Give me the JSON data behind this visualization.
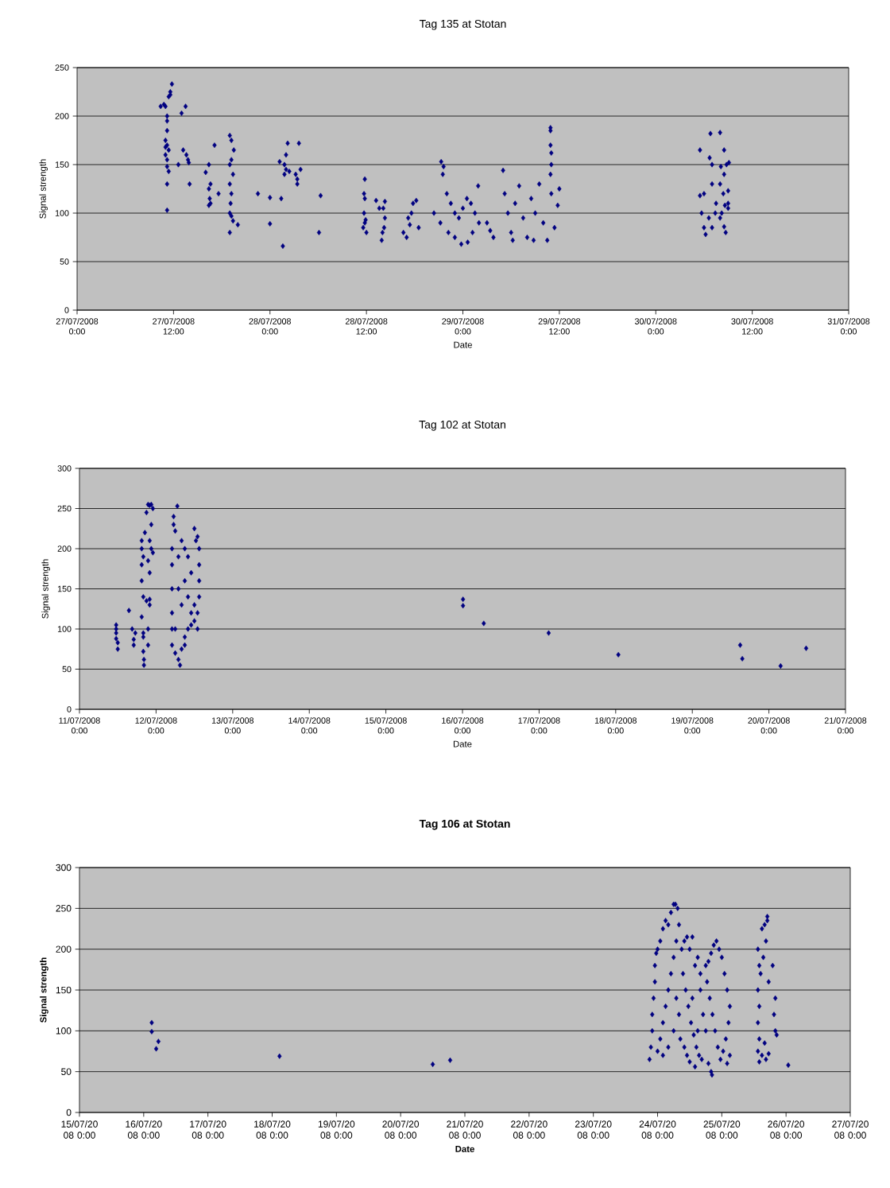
{
  "chart_data": [
    {
      "type": "scatter",
      "title": "Tag 135 at Stotan",
      "xlabel": "Date",
      "ylabel": "Signal strength",
      "color": "#000080",
      "marker": "diamond",
      "grid": "y",
      "xlim": [
        "2008-07-27T00:00",
        "2008-07-31T00:00"
      ],
      "ylim": [
        0,
        250
      ],
      "xticks": [
        {
          "value": "2008-07-27T00:00",
          "label": "27/07/2008 0:00"
        },
        {
          "value": "2008-07-27T12:00",
          "label": "27/07/2008 12:00"
        },
        {
          "value": "2008-07-28T00:00",
          "label": "28/07/2008 0:00"
        },
        {
          "value": "2008-07-28T12:00",
          "label": "28/07/2008 12:00"
        },
        {
          "value": "2008-07-29T00:00",
          "label": "29/07/2008 0:00"
        },
        {
          "value": "2008-07-29T12:00",
          "label": "29/07/2008 12:00"
        },
        {
          "value": "2008-07-30T00:00",
          "label": "30/07/2008 0:00"
        },
        {
          "value": "2008-07-30T12:00",
          "label": "30/07/2008 12:00"
        },
        {
          "value": "2008-07-31T00:00",
          "label": "31/07/2008 0:00"
        }
      ],
      "yticks": [
        0,
        50,
        100,
        150,
        200,
        250
      ],
      "x": [
        "2008-07-27T10:24",
        "2008-07-27T10:48",
        "2008-07-27T11:00",
        "2008-07-27T11:24",
        "2008-07-27T11:36",
        "2008-07-27T11:48",
        "2008-07-27T11:36",
        "2008-07-27T11:12",
        "2008-07-27T11:12",
        "2008-07-27T11:12",
        "2008-07-27T11:00",
        "2008-07-27T11:00",
        "2008-07-27T11:12",
        "2008-07-27T11:12",
        "2008-07-27T11:24",
        "2008-07-27T11:12",
        "2008-07-27T11:12",
        "2008-07-27T11:00",
        "2008-07-27T11:12",
        "2008-07-27T11:24",
        "2008-07-27T13:00",
        "2008-07-27T13:30",
        "2008-07-27T13:12",
        "2008-07-27T13:36",
        "2008-07-27T13:48",
        "2008-07-27T13:54",
        "2008-07-27T14:00",
        "2008-07-27T12:36",
        "2008-07-27T16:00",
        "2008-07-27T16:24",
        "2008-07-27T16:24",
        "2008-07-27T16:36",
        "2008-07-27T16:30",
        "2008-07-27T16:24",
        "2008-07-27T16:36",
        "2008-07-27T17:36",
        "2008-07-27T17:06",
        "2008-07-27T19:00",
        "2008-07-27T19:12",
        "2008-07-27T19:30",
        "2008-07-27T19:12",
        "2008-07-27T19:00",
        "2008-07-27T19:24",
        "2008-07-27T19:00",
        "2008-07-27T19:12",
        "2008-07-27T19:06",
        "2008-07-27T19:00",
        "2008-07-27T19:12",
        "2008-07-27T19:24",
        "2008-07-27T19:00",
        "2008-07-27T20:00",
        "2008-07-27T22:30",
        "2008-07-28T00:00",
        "2008-07-28T00:00",
        "2008-07-28T01:24",
        "2008-07-28T01:36",
        "2008-07-28T01:12",
        "2008-07-28T01:48",
        "2008-07-28T02:00",
        "2008-07-28T02:12",
        "2008-07-28T01:48",
        "2008-07-28T02:00",
        "2008-07-28T02:24",
        "2008-07-28T03:36",
        "2008-07-28T03:12",
        "2008-07-28T03:24",
        "2008-07-28T03:24",
        "2008-07-28T03:48",
        "2008-07-28T06:18",
        "2008-07-28T06:06",
        "2008-07-28T11:48",
        "2008-07-28T11:42",
        "2008-07-28T11:48",
        "2008-07-28T11:42",
        "2008-07-28T11:48",
        "2008-07-28T11:36",
        "2008-07-28T12:00",
        "2008-07-28T11:54",
        "2008-07-28T13:12",
        "2008-07-28T13:36",
        "2008-07-28T14:06",
        "2008-07-28T14:18",
        "2008-07-28T14:18",
        "2008-07-28T14:12",
        "2008-07-28T14:00",
        "2008-07-28T13:54",
        "2008-07-28T16:36",
        "2008-07-28T17:00",
        "2008-07-28T17:12",
        "2008-07-28T17:36",
        "2008-07-28T17:48",
        "2008-07-28T18:12",
        "2008-07-28T18:30",
        "2008-07-28T17:24",
        "2008-07-28T21:18",
        "2008-07-28T21:36",
        "2008-07-28T21:30",
        "2008-07-28T22:00",
        "2008-07-28T22:30",
        "2008-07-28T23:00",
        "2008-07-28T23:30",
        "2008-07-29T00:00",
        "2008-07-29T00:30",
        "2008-07-29T01:00",
        "2008-07-29T01:30",
        "2008-07-29T02:00",
        "2008-07-28T22:12",
        "2008-07-28T23:00",
        "2008-07-28T23:48",
        "2008-07-29T00:36",
        "2008-07-29T01:12",
        "2008-07-28T21:12",
        "2008-07-28T20:24",
        "2008-07-29T01:54",
        "2008-07-29T03:00",
        "2008-07-29T03:24",
        "2008-07-29T03:48",
        "2008-07-29T05:00",
        "2008-07-29T05:12",
        "2008-07-29T05:36",
        "2008-07-29T06:00",
        "2008-07-29T06:30",
        "2008-07-29T07:00",
        "2008-07-29T07:30",
        "2008-07-29T08:00",
        "2008-07-29T08:30",
        "2008-07-29T09:00",
        "2008-07-29T09:30",
        "2008-07-29T10:00",
        "2008-07-29T10:30",
        "2008-07-29T11:00",
        "2008-07-29T11:24",
        "2008-07-29T06:12",
        "2008-07-29T08:48",
        "2008-07-29T10:54",
        "2008-07-29T10:54",
        "2008-07-29T10:54",
        "2008-07-29T11:00",
        "2008-07-29T11:00",
        "2008-07-29T10:54",
        "2008-07-29T12:00",
        "2008-07-29T11:48",
        "2008-07-30T05:30",
        "2008-07-30T06:48",
        "2008-07-30T08:00",
        "2008-07-30T08:30",
        "2008-07-30T06:42",
        "2008-07-30T07:00",
        "2008-07-30T08:06",
        "2008-07-30T08:30",
        "2008-07-30T06:00",
        "2008-07-30T05:30",
        "2008-07-30T07:00",
        "2008-07-30T08:00",
        "2008-07-30T08:24",
        "2008-07-30T07:30",
        "2008-07-30T05:42",
        "2008-07-30T06:00",
        "2008-07-30T06:12",
        "2008-07-30T07:00",
        "2008-07-30T07:24",
        "2008-07-30T08:12",
        "2008-07-30T08:36",
        "2008-07-30T09:00",
        "2008-07-30T08:42",
        "2008-07-30T08:30",
        "2008-07-30T08:00",
        "2008-07-30T06:36",
        "2008-07-30T09:00",
        "2008-07-30T09:06",
        "2008-07-30T08:48",
        "2008-07-30T09:00"
      ],
      "values": [
        210,
        212,
        210,
        220,
        225,
        233,
        222,
        195,
        185,
        170,
        168,
        160,
        155,
        148,
        143,
        130,
        103,
        175,
        200,
        165,
        203,
        210,
        165,
        160,
        155,
        152,
        130,
        150,
        142,
        150,
        125,
        130,
        115,
        108,
        110,
        120,
        170,
        180,
        175,
        165,
        155,
        150,
        140,
        130,
        120,
        110,
        100,
        97,
        92,
        80,
        88,
        120,
        116,
        89,
        115,
        66,
        153,
        150,
        160,
        172,
        140,
        145,
        143,
        172,
        140,
        135,
        130,
        145,
        118,
        80,
        135,
        120,
        115,
        100,
        90,
        85,
        80,
        93,
        113,
        105,
        105,
        112,
        95,
        85,
        80,
        72,
        80,
        75,
        95,
        100,
        110,
        113,
        85,
        88,
        153,
        148,
        140,
        120,
        110,
        100,
        95,
        105,
        115,
        110,
        100,
        90,
        80,
        75,
        68,
        70,
        80,
        90,
        100,
        128,
        90,
        82,
        75,
        144,
        120,
        100,
        80,
        110,
        128,
        95,
        75,
        115,
        100,
        130,
        90,
        72,
        120,
        85,
        72,
        72,
        188,
        185,
        170,
        162,
        150,
        140,
        125,
        108,
        165,
        182,
        183,
        165,
        157,
        150,
        148,
        140,
        120,
        118,
        130,
        130,
        120,
        110,
        100,
        85,
        78,
        85,
        100,
        100,
        108,
        110,
        80,
        86,
        95,
        95,
        123,
        152,
        150,
        105
      ]
    },
    {
      "type": "scatter",
      "title": "Tag 102 at Stotan",
      "xlabel": "Date",
      "ylabel": "Signal strength",
      "color": "#000080",
      "marker": "diamond",
      "grid": "y",
      "xlim": [
        "2008-07-11T00:00",
        "2008-07-21T00:00"
      ],
      "ylim": [
        0,
        300
      ],
      "xticks": [
        {
          "value": "2008-07-11T00:00",
          "label": "11/07/2008 0:00"
        },
        {
          "value": "2008-07-12T00:00",
          "label": "12/07/2008 0:00"
        },
        {
          "value": "2008-07-13T00:00",
          "label": "13/07/2008 0:00"
        },
        {
          "value": "2008-07-14T00:00",
          "label": "14/07/2008 0:00"
        },
        {
          "value": "2008-07-15T00:00",
          "label": "15/07/2008 0:00"
        },
        {
          "value": "2008-07-16T00:00",
          "label": "16/07/2008 0:00"
        },
        {
          "value": "2008-07-17T00:00",
          "label": "17/07/2008 0:00"
        },
        {
          "value": "2008-07-18T00:00",
          "label": "18/07/2008 0:00"
        },
        {
          "value": "2008-07-19T00:00",
          "label": "19/07/2008 0:00"
        },
        {
          "value": "2008-07-20T00:00",
          "label": "20/07/2008 0:00"
        },
        {
          "value": "2008-07-21T00:00",
          "label": "21/07/2008 0:00"
        }
      ],
      "yticks": [
        0,
        50,
        100,
        150,
        200,
        250,
        300
      ],
      "x": [
        "2008-07-11T11:30",
        "2008-07-11T11:30",
        "2008-07-11T11:30",
        "2008-07-11T12:00",
        "2008-07-11T12:00",
        "2008-07-11T11:30",
        "2008-07-11T15:30",
        "2008-07-11T16:30",
        "2008-07-11T17:00",
        "2008-07-11T17:00",
        "2008-07-11T17:30",
        "2008-07-11T19:30",
        "2008-07-11T20:00",
        "2008-07-11T20:00",
        "2008-07-11T20:00",
        "2008-07-11T20:12",
        "2008-07-11T20:12",
        "2008-07-11T21:30",
        "2008-07-11T21:30",
        "2008-07-11T22:00",
        "2008-07-11T22:00",
        "2008-07-11T19:30",
        "2008-07-11T19:30",
        "2008-07-11T19:30",
        "2008-07-11T19:30",
        "2008-07-11T20:00",
        "2008-07-11T20:30",
        "2008-07-11T21:00",
        "2008-07-11T21:30",
        "2008-07-11T22:00",
        "2008-07-11T22:30",
        "2008-07-11T23:00",
        "2008-07-11T22:30",
        "2008-07-11T22:00",
        "2008-07-11T22:30",
        "2008-07-11T23:00",
        "2008-07-11T21:30",
        "2008-07-11T22:00",
        "2008-07-11T20:00",
        "2008-07-11T21:00",
        "2008-07-12T06:40",
        "2008-07-12T05:30",
        "2008-07-12T05:30",
        "2008-07-12T06:00",
        "2008-07-12T12:00",
        "2008-07-12T13:00",
        "2008-07-12T05:00",
        "2008-07-12T05:00",
        "2008-07-12T05:00",
        "2008-07-12T05:00",
        "2008-07-12T05:00",
        "2008-07-12T05:00",
        "2008-07-12T06:00",
        "2008-07-12T07:00",
        "2008-07-12T07:30",
        "2008-07-12T08:00",
        "2008-07-12T09:00",
        "2008-07-12T10:00",
        "2008-07-12T11:00",
        "2008-07-12T12:00",
        "2008-07-12T13:00",
        "2008-07-12T13:30",
        "2008-07-12T13:30",
        "2008-07-12T13:30",
        "2008-07-12T13:30",
        "2008-07-12T12:30",
        "2008-07-12T08:00",
        "2008-07-12T09:00",
        "2008-07-12T10:00",
        "2008-07-12T11:00",
        "2008-07-12T07:00",
        "2008-07-12T08:00",
        "2008-07-12T09:00",
        "2008-07-12T10:00",
        "2008-07-12T11:00",
        "2008-07-12T12:00",
        "2008-07-12T07:00",
        "2008-07-12T06:00",
        "2008-07-12T09:00",
        "2008-07-12T13:00",
        "2008-07-16T00:10",
        "2008-07-16T00:10",
        "2008-07-16T06:40",
        "2008-07-17T03:00",
        "2008-07-18T00:50",
        "2008-07-19T15:00",
        "2008-07-19T15:40",
        "2008-07-20T03:40",
        "2008-07-20T11:40"
      ],
      "values": [
        100,
        95,
        88,
        83,
        75,
        105,
        123,
        100,
        87,
        80,
        95,
        115,
        95,
        90,
        72,
        62,
        55,
        100,
        80,
        130,
        137,
        160,
        180,
        200,
        210,
        190,
        220,
        245,
        255,
        254,
        255,
        250,
        230,
        210,
        200,
        195,
        185,
        170,
        140,
        135,
        253,
        240,
        230,
        222,
        225,
        215,
        200,
        180,
        150,
        120,
        100,
        80,
        70,
        62,
        55,
        75,
        90,
        100,
        105,
        110,
        120,
        140,
        160,
        180,
        200,
        210,
        210,
        200,
        190,
        170,
        150,
        130,
        160,
        140,
        120,
        130,
        190,
        100,
        80,
        100,
        137,
        129,
        107,
        95,
        68,
        80,
        63,
        54,
        76
      ]
    },
    {
      "type": "scatter",
      "title": "Tag 106 at Stotan",
      "xlabel": "Date",
      "ylabel": "Signal strength",
      "color": "#000080",
      "marker": "diamond",
      "grid": "y",
      "xlim": [
        "2008-07-15T00:00",
        "2008-07-27T00:00"
      ],
      "ylim": [
        0,
        300
      ],
      "xticks": [
        {
          "value": "2008-07-15T00:00",
          "label": "15/07/20 08 0:00"
        },
        {
          "value": "2008-07-16T00:00",
          "label": "16/07/20 08 0:00"
        },
        {
          "value": "2008-07-17T00:00",
          "label": "17/07/20 08 0:00"
        },
        {
          "value": "2008-07-18T00:00",
          "label": "18/07/20 08 0:00"
        },
        {
          "value": "2008-07-19T00:00",
          "label": "19/07/20 08 0:00"
        },
        {
          "value": "2008-07-20T00:00",
          "label": "20/07/20 08 0:00"
        },
        {
          "value": "2008-07-21T00:00",
          "label": "21/07/20 08 0:00"
        },
        {
          "value": "2008-07-22T00:00",
          "label": "22/07/20 08 0:00"
        },
        {
          "value": "2008-07-23T00:00",
          "label": "23/07/20 08 0:00"
        },
        {
          "value": "2008-07-24T00:00",
          "label": "24/07/20 08 0:00"
        },
        {
          "value": "2008-07-25T00:00",
          "label": "25/07/20 08 0:00"
        },
        {
          "value": "2008-07-26T00:00",
          "label": "26/07/20 08 0:00"
        },
        {
          "value": "2008-07-27T00:00",
          "label": "27/07/20 08 0:00"
        }
      ],
      "yticks": [
        0,
        50,
        100,
        150,
        200,
        250,
        300
      ],
      "x": [
        "2008-07-16T03:00",
        "2008-07-16T03:00",
        "2008-07-16T05:30",
        "2008-07-16T04:40",
        "2008-07-18T02:45",
        "2008-07-20T12:00",
        "2008-07-20T18:30",
        "2008-07-23T21:00",
        "2008-07-23T21:30",
        "2008-07-23T22:00",
        "2008-07-23T22:00",
        "2008-07-23T22:30",
        "2008-07-23T23:00",
        "2008-07-23T23:00",
        "2008-07-23T23:30",
        "2008-07-24T00:00",
        "2008-07-24T01:00",
        "2008-07-24T02:00",
        "2008-07-24T03:00",
        "2008-07-24T04:00",
        "2008-07-24T05:00",
        "2008-07-24T06:00",
        "2008-07-24T06:40",
        "2008-07-24T07:30",
        "2008-07-24T08:00",
        "2008-07-24T07:00",
        "2008-07-24T06:00",
        "2008-07-24T05:00",
        "2008-07-24T04:00",
        "2008-07-24T03:00",
        "2008-07-24T02:00",
        "2008-07-24T01:00",
        "2008-07-24T00:00",
        "2008-07-24T02:00",
        "2008-07-24T04:00",
        "2008-07-24T06:00",
        "2008-07-24T08:00",
        "2008-07-24T08:30",
        "2008-07-24T07:00",
        "2008-07-24T09:00",
        "2008-07-24T10:00",
        "2008-07-24T11:00",
        "2008-07-24T12:00",
        "2008-07-24T13:00",
        "2008-07-24T14:00",
        "2008-07-24T15:00",
        "2008-07-24T16:00",
        "2008-07-24T09:30",
        "2008-07-24T10:30",
        "2008-07-24T11:30",
        "2008-07-24T12:30",
        "2008-07-24T13:30",
        "2008-07-24T14:30",
        "2008-07-24T15:30",
        "2008-07-24T16:30",
        "2008-07-24T10:00",
        "2008-07-24T12:00",
        "2008-07-24T11:00",
        "2008-07-24T14:00",
        "2008-07-24T16:00",
        "2008-07-24T17:00",
        "2008-07-24T15:00",
        "2008-07-24T13:00",
        "2008-07-24T18:00",
        "2008-07-24T19:00",
        "2008-07-24T20:00",
        "2008-07-24T21:00",
        "2008-07-24T22:00",
        "2008-07-24T23:00",
        "2008-07-25T00:00",
        "2008-07-25T01:00",
        "2008-07-25T02:00",
        "2008-07-25T03:00",
        "2008-07-24T18:30",
        "2008-07-24T19:30",
        "2008-07-24T20:30",
        "2008-07-24T21:30",
        "2008-07-24T22:30",
        "2008-07-24T23:30",
        "2008-07-25T00:30",
        "2008-07-25T01:30",
        "2008-07-25T02:30",
        "2008-07-24T19:00",
        "2008-07-24T20:00",
        "2008-07-24T20:20",
        "2008-07-25T02:00",
        "2008-07-24T18:00",
        "2008-07-25T03:00",
        "2008-07-25T13:30",
        "2008-07-25T14:00",
        "2008-07-25T15:00",
        "2008-07-25T16:00",
        "2008-07-25T17:00",
        "2008-07-25T17:00",
        "2008-07-25T16:30",
        "2008-07-25T15:30",
        "2008-07-25T14:30",
        "2008-07-25T13:30",
        "2008-07-25T14:00",
        "2008-07-25T13:30",
        "2008-07-25T14:00",
        "2008-07-25T13:30",
        "2008-07-25T14:00",
        "2008-07-25T15:00",
        "2008-07-25T16:00",
        "2008-07-25T20:00",
        "2008-07-25T19:30",
        "2008-07-25T20:00",
        "2008-07-25T17:30",
        "2008-07-25T19:00",
        "2008-07-25T16:30",
        "2008-07-25T17:30",
        "2008-07-25T20:30",
        "2008-07-26T00:50"
      ],
      "values": [
        110,
        99,
        87,
        78,
        69,
        59,
        64,
        65,
        80,
        100,
        120,
        140,
        160,
        180,
        195,
        200,
        210,
        225,
        235,
        230,
        245,
        255,
        255,
        250,
        230,
        210,
        190,
        170,
        150,
        130,
        110,
        90,
        75,
        70,
        80,
        100,
        120,
        90,
        140,
        200,
        210,
        215,
        200,
        215,
        180,
        190,
        170,
        170,
        150,
        130,
        110,
        95,
        80,
        70,
        65,
        80,
        62,
        70,
        56,
        150,
        120,
        100,
        140,
        180,
        185,
        195,
        205,
        210,
        200,
        190,
        170,
        150,
        130,
        160,
        140,
        120,
        100,
        80,
        65,
        75,
        90,
        110,
        60,
        50,
        46,
        60,
        100,
        70,
        200,
        180,
        225,
        230,
        240,
        235,
        210,
        190,
        170,
        150,
        130,
        110,
        90,
        75,
        62,
        70,
        85,
        100,
        120,
        140,
        160,
        180,
        65,
        72,
        95,
        58
      ]
    }
  ]
}
